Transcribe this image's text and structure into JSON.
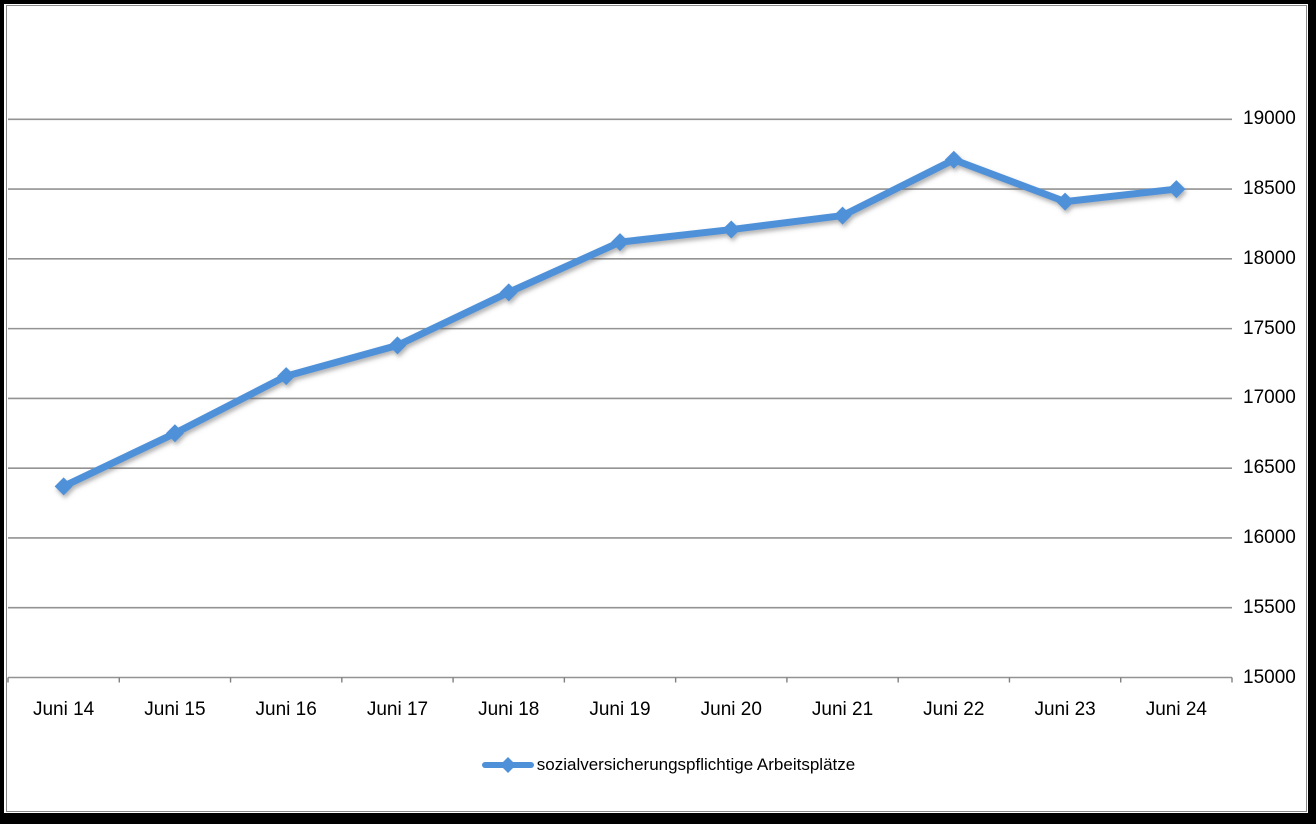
{
  "chart_data": {
    "type": "line",
    "title": "",
    "categories": [
      "Juni 14",
      "Juni 15",
      "Juni 16",
      "Juni 17",
      "Juni 18",
      "Juni 19",
      "Juni 20",
      "Juni 21",
      "Juni 22",
      "Juni 23",
      "Juni 24"
    ],
    "series": [
      {
        "name": "sozialversicherungspflichtige Arbeitsplätze",
        "values": [
          16370,
          16750,
          17160,
          17380,
          17760,
          18120,
          18210,
          18310,
          18710,
          18410,
          18500
        ]
      }
    ],
    "xlabel": "",
    "ylabel": "",
    "ylim": [
      15000,
      19000
    ],
    "ytick_step": 500,
    "yticks": [
      "15000",
      "15500",
      "16000",
      "16500",
      "17000",
      "17500",
      "18000",
      "18500",
      "19000"
    ],
    "y_axis_side": "right",
    "legend_position": "bottom",
    "grid": true,
    "marker": "diamond",
    "colors": {
      "line": "#4f91d9",
      "gridline": "#939393",
      "axis": "#808080",
      "text": "#000000",
      "chart_border": "#8a8a8a",
      "frame": "#000000",
      "background": "#ffffff"
    }
  }
}
